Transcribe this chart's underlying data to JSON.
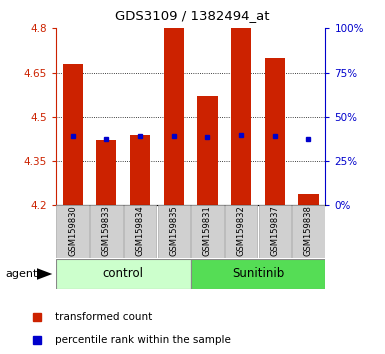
{
  "title": "GDS3109 / 1382494_at",
  "categories": [
    "GSM159830",
    "GSM159833",
    "GSM159834",
    "GSM159835",
    "GSM159831",
    "GSM159832",
    "GSM159837",
    "GSM159838"
  ],
  "bar_values": [
    4.68,
    4.42,
    4.44,
    4.84,
    4.57,
    4.84,
    4.7,
    4.24
  ],
  "blue_values": [
    4.435,
    4.425,
    4.435,
    4.435,
    4.43,
    4.44,
    4.435,
    4.425
  ],
  "ymin": 4.2,
  "ymax": 4.8,
  "y_ticks_left": [
    4.2,
    4.35,
    4.5,
    4.65,
    4.8
  ],
  "y_ticks_right_pct": [
    0,
    25,
    50,
    75,
    100
  ],
  "y_ticks_right_vals": [
    4.2,
    4.35,
    4.5,
    4.65,
    4.8
  ],
  "bar_color": "#cc2200",
  "blue_color": "#0000cc",
  "control_color": "#ccffcc",
  "sunitinib_color": "#55dd55",
  "tick_label_color_left": "#cc2200",
  "tick_label_color_right": "#0000cc",
  "bar_width": 0.6,
  "grid_yticks": [
    4.35,
    4.5,
    4.65
  ],
  "control_label": "control",
  "sunitinib_label": "Sunitinib",
  "agent_label": "agent",
  "legend_items": [
    {
      "label": "transformed count",
      "color": "#cc2200"
    },
    {
      "label": "percentile rank within the sample",
      "color": "#0000cc"
    }
  ],
  "xlabel_bg_color": "#d0d0d0",
  "xlabel_border_color": "#aaaaaa"
}
